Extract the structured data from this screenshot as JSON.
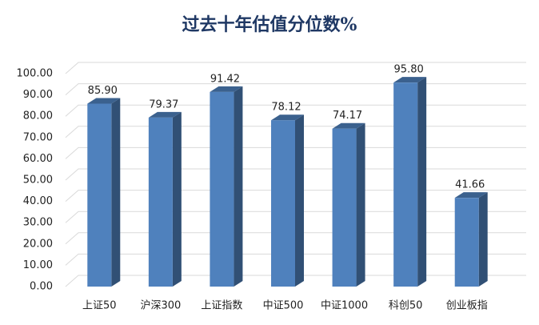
{
  "chart_data": {
    "type": "bar3d",
    "title": "过去十年估值分位数%",
    "categories": [
      "上证50",
      "沪深300",
      "上证指数",
      "中证500",
      "中证1000",
      "科创50",
      "创业板指"
    ],
    "values": [
      85.9,
      79.37,
      91.42,
      78.12,
      74.17,
      95.8,
      41.66
    ],
    "value_labels": [
      "85.90",
      "79.37",
      "91.42",
      "78.12",
      "74.17",
      "95.80",
      "41.66"
    ],
    "color": "#4f81bd",
    "ylim": [
      0,
      100
    ],
    "yticks": [
      {
        "value": 0,
        "label": "0.00"
      },
      {
        "value": 10,
        "label": "10.00"
      },
      {
        "value": 20,
        "label": "20.00"
      },
      {
        "value": 30,
        "label": "30.00"
      },
      {
        "value": 40,
        "label": "40.00"
      },
      {
        "value": 50,
        "label": "50.00"
      },
      {
        "value": 60,
        "label": "60.00"
      },
      {
        "value": 70,
        "label": "70.00"
      },
      {
        "value": 80,
        "label": "80.00"
      },
      {
        "value": 90,
        "label": "90.00"
      },
      {
        "value": 100,
        "label": "100.00"
      }
    ],
    "grid": true
  }
}
